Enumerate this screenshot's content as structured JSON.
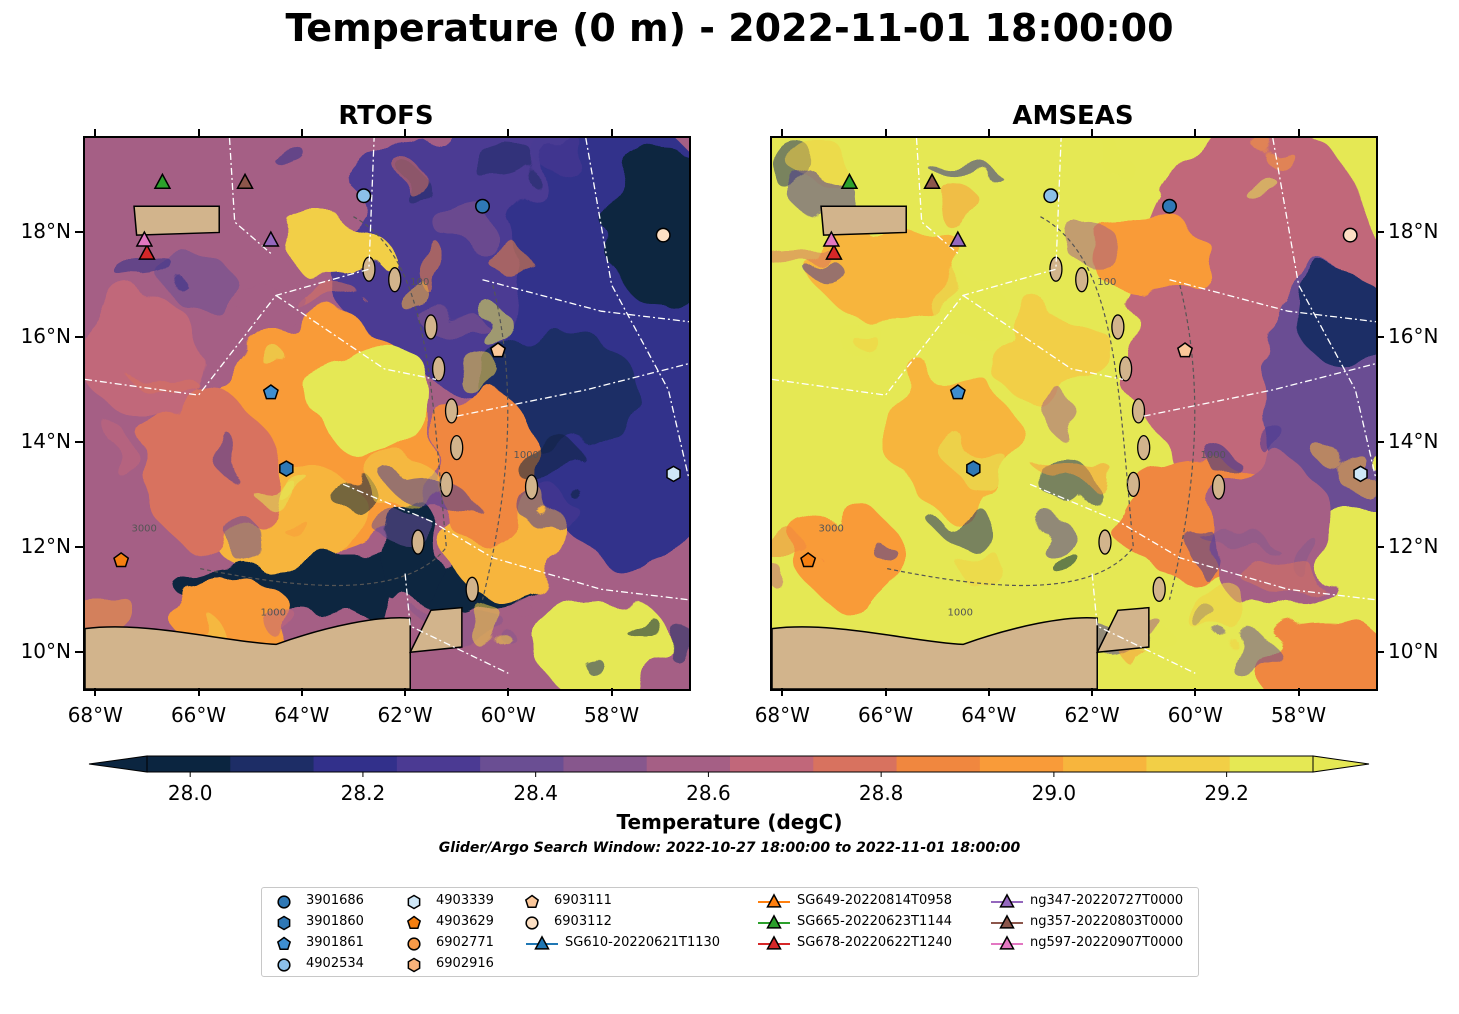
{
  "figure": {
    "title": "Temperature (0 m) - 2022-11-01 18:00:00",
    "search_window": "Glider/Argo Search Window: 2022-10-27 18:00:00 to 2022-11-01 18:00:00"
  },
  "panels": [
    {
      "title": "RTOFS",
      "style": "warm-ocean-low"
    },
    {
      "title": "AMSEAS",
      "style": "warm-ocean-high"
    }
  ],
  "map_extent": {
    "lon": [
      -68.2,
      -56.5
    ],
    "lat": [
      9.3,
      19.8
    ]
  },
  "axes": {
    "lon_ticks": [
      {
        "value": -68,
        "label": "68°W"
      },
      {
        "value": -66,
        "label": "66°W"
      },
      {
        "value": -64,
        "label": "64°W"
      },
      {
        "value": -62,
        "label": "62°W"
      },
      {
        "value": -60,
        "label": "60°W"
      },
      {
        "value": -58,
        "label": "58°W"
      }
    ],
    "lat_ticks": [
      {
        "value": 18,
        "label": "18°N"
      },
      {
        "value": 16,
        "label": "16°N"
      },
      {
        "value": 14,
        "label": "14°N"
      },
      {
        "value": 12,
        "label": "12°N"
      },
      {
        "value": 10,
        "label": "10°N"
      }
    ]
  },
  "colorbar": {
    "label": "Temperature (degC)",
    "min": 27.95,
    "max": 29.3,
    "step": 0.1,
    "tick_labels": [
      {
        "value": 28.0,
        "label": "28.0"
      },
      {
        "value": 28.2,
        "label": "28.2"
      },
      {
        "value": 28.4,
        "label": "28.4"
      },
      {
        "value": 28.6,
        "label": "28.6"
      },
      {
        "value": 28.8,
        "label": "28.8"
      },
      {
        "value": 29.0,
        "label": "29.0"
      },
      {
        "value": 29.2,
        "label": "29.2"
      }
    ],
    "colors": [
      "#0b2540",
      "#1d2d66",
      "#32308b",
      "#4b3a93",
      "#6a4e93",
      "#87578d",
      "#a55f85",
      "#c1677a",
      "#d8725f",
      "#f0873f",
      "#f99b39",
      "#f7b53d",
      "#f2cf46",
      "#e5e854"
    ]
  },
  "land_color": "#d2b48c",
  "contour_labels": [
    "100",
    "1000",
    "3000"
  ],
  "platforms": [
    {
      "id": "3901686",
      "marker": "circle",
      "color": "#2f78b5",
      "lon": -60.5,
      "lat": 18.5
    },
    {
      "id": "3901860",
      "marker": "hexagon",
      "color": "#2f78b5",
      "lon": -64.3,
      "lat": 13.5
    },
    {
      "id": "3901861",
      "marker": "pentagon",
      "color": "#3e8ed0",
      "lon": -64.6,
      "lat": 14.95
    },
    {
      "id": "4902534",
      "marker": "circle",
      "color": "#8cc0ea",
      "lon": -62.8,
      "lat": 18.7
    },
    {
      "id": "4903339",
      "marker": "hexagon",
      "color": "#cfe7f7",
      "lon": -56.8,
      "lat": 13.4
    },
    {
      "id": "4903629",
      "marker": "pentagon",
      "color": "#f57f10",
      "lon": -67.5,
      "lat": 11.75
    },
    {
      "id": "6902771",
      "marker": "circle",
      "color": "#f79a48",
      "lon": null,
      "lat": null
    },
    {
      "id": "6902916",
      "marker": "hexagon",
      "color": "#f9b27a",
      "lon": null,
      "lat": null
    },
    {
      "id": "6903111",
      "marker": "pentagon",
      "color": "#fbc79a",
      "lon": -60.2,
      "lat": 15.75
    },
    {
      "id": "6903112",
      "marker": "circle",
      "color": "#fde0c4",
      "lon": -57.0,
      "lat": 17.95
    },
    {
      "id": "SG610-20220621T1130",
      "marker": "triangle",
      "color": "#1f77b4",
      "line": true,
      "lon": null,
      "lat": null
    },
    {
      "id": "SG649-20220814T0958",
      "marker": "triangle",
      "color": "#ff7f0e",
      "line": true,
      "lon": null,
      "lat": null
    },
    {
      "id": "SG665-20220623T1144",
      "marker": "triangle",
      "color": "#2ca02c",
      "line": true,
      "lon": -66.7,
      "lat": 18.95
    },
    {
      "id": "SG678-20220622T1240",
      "marker": "triangle",
      "color": "#d62728",
      "line": true,
      "lon": -67.0,
      "lat": 17.6
    },
    {
      "id": "ng347-20220727T0000",
      "marker": "triangle",
      "color": "#9467bd",
      "line": true,
      "lon": -64.6,
      "lat": 17.85
    },
    {
      "id": "ng357-20220803T0000",
      "marker": "triangle",
      "color": "#8c564b",
      "line": true,
      "lon": -65.1,
      "lat": 18.95
    },
    {
      "id": "ng597-20220907T0000",
      "marker": "triangle",
      "color": "#e377c2",
      "line": true,
      "lon": -67.05,
      "lat": 17.85
    }
  ]
}
